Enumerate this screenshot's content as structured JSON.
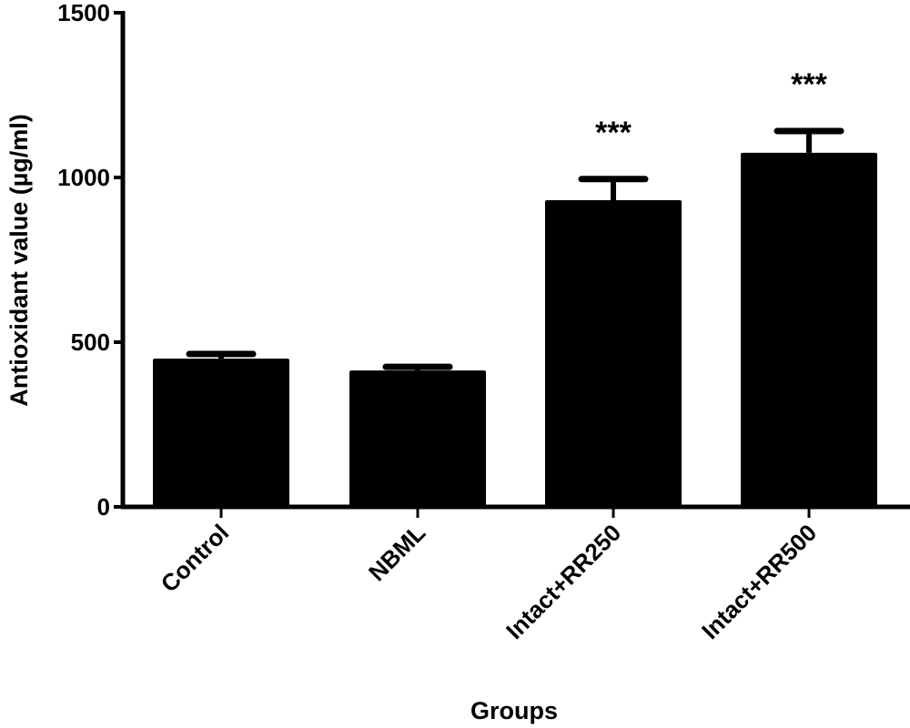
{
  "chart_data": {
    "type": "bar",
    "title": "",
    "xlabel": "Groups",
    "ylabel": "Antioxidant value (µg/ml)",
    "categories": [
      "Control",
      "NBML",
      "Intact+RR250",
      "Intact+RR500"
    ],
    "values": [
      450,
      414,
      931,
      1075
    ],
    "error_upper": [
      464,
      425,
      995,
      1141
    ],
    "annotations": [
      "",
      "",
      "***",
      "***"
    ],
    "ylim": [
      0,
      1500
    ],
    "yticks": [
      0,
      500,
      1000,
      1500
    ],
    "ytick_labels": [
      "0",
      "500",
      "1000",
      "1500"
    ],
    "grid": false,
    "bar_color": "#000000"
  }
}
